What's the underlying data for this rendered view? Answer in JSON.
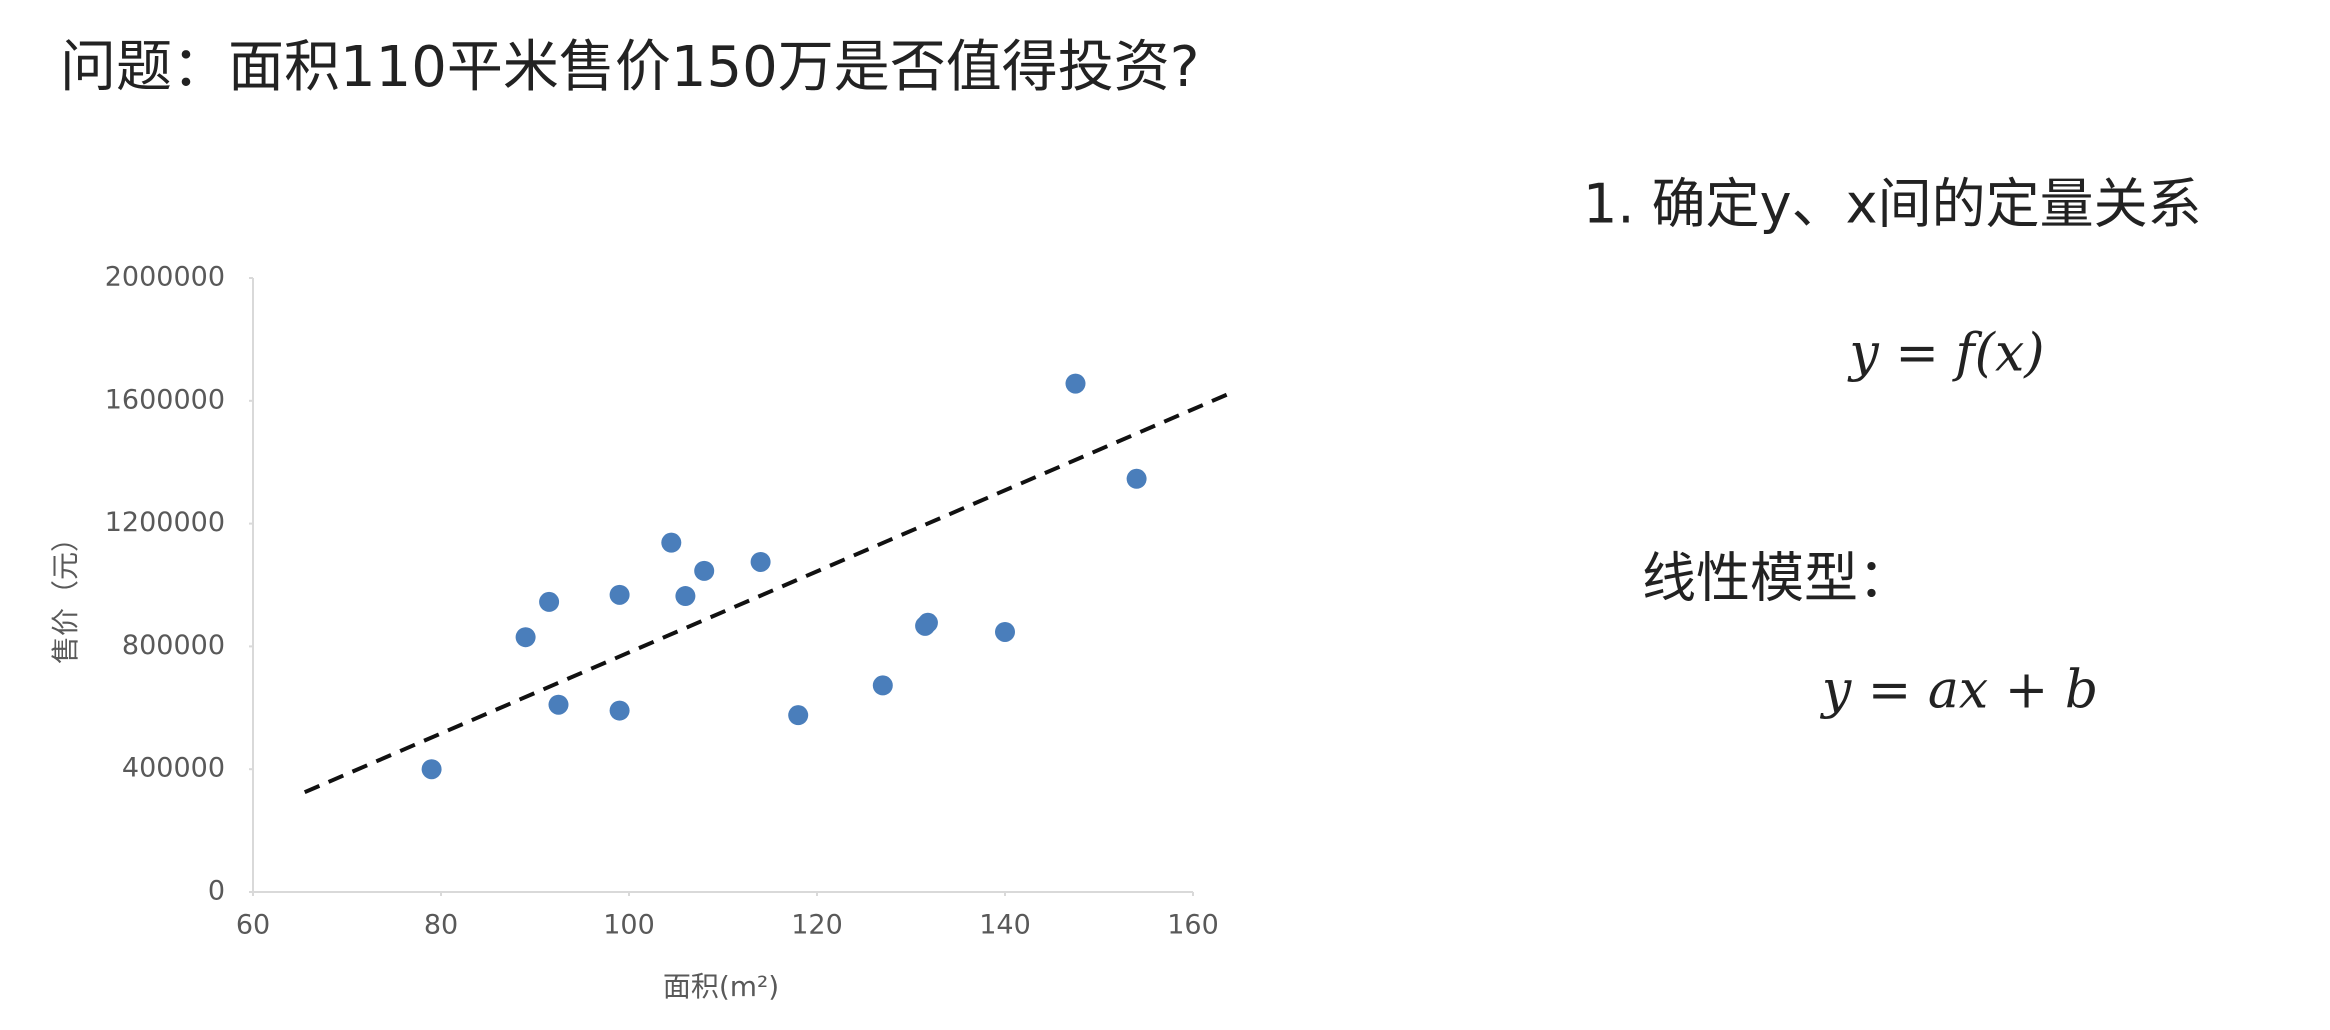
{
  "header": {
    "title": "问题：面积110平米售价150万是否值得投资?"
  },
  "chart_data": {
    "type": "scatter",
    "x_label": "面积(m²)",
    "y_label": "售价（元）",
    "x": [
      79,
      89,
      91.5,
      92.5,
      99,
      99,
      104.5,
      106,
      108,
      114,
      118,
      127,
      131.5,
      131.8,
      140,
      147.5,
      154
    ],
    "values": [
      400000,
      830000,
      945000,
      610000,
      968000,
      591000,
      1138000,
      964000,
      1046000,
      1075000,
      576000,
      673000,
      867000,
      877000,
      847000,
      1656000,
      1346000
    ],
    "color": "#4a7ebb",
    "xlim": [
      60,
      160
    ],
    "xticks": [
      60,
      80,
      100,
      120,
      140,
      160
    ],
    "ylim": [
      0,
      2000000
    ],
    "yticks": [
      0,
      400000,
      800000,
      1200000,
      1600000,
      2000000
    ],
    "trendline": {
      "x": [
        65.5,
        163.6
      ],
      "y": [
        325000,
        1620000
      ],
      "color": "#111111"
    }
  },
  "side": {
    "heading": "1. 确定y、x间的定量关系",
    "formula1": "y = f(x)",
    "model_label": "线性模型：",
    "formula2": "y = ax + b"
  }
}
